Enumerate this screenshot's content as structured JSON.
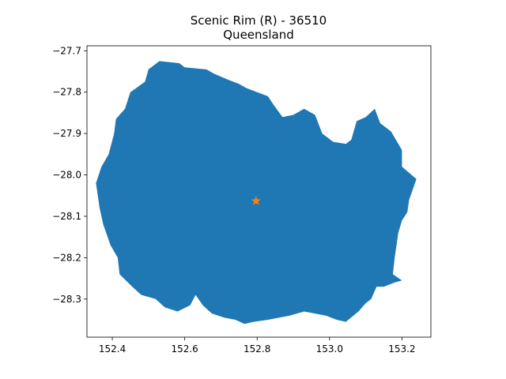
{
  "title": "Scenic Rim (R) - 36510",
  "subtitle": "Queensland",
  "map": {
    "region_color": "#1f77b4",
    "marker_color": "#ff7f0e",
    "marker": "star",
    "centroid": {
      "lon": 152.797,
      "lat": -28.063
    },
    "xlim": [
      152.33,
      153.28
    ],
    "ylim": [
      -28.392,
      -27.688
    ],
    "xticks": [
      {
        "value": 152.4,
        "label": "152.4"
      },
      {
        "value": 152.6,
        "label": "152.6"
      },
      {
        "value": 152.8,
        "label": "152.8"
      },
      {
        "value": 153.0,
        "label": "153.0"
      },
      {
        "value": 153.2,
        "label": "153.2"
      }
    ],
    "yticks": [
      {
        "value": -27.7,
        "label": "−27.7"
      },
      {
        "value": -27.8,
        "label": "−27.8"
      },
      {
        "value": -27.9,
        "label": "−27.9"
      },
      {
        "value": -28.0,
        "label": "−28.0"
      },
      {
        "value": -28.1,
        "label": "−28.1"
      },
      {
        "value": -28.2,
        "label": "−28.2"
      },
      {
        "value": -28.3,
        "label": "−28.3"
      }
    ],
    "boundary": [
      [
        152.53,
        -27.725
      ],
      [
        152.585,
        -27.73
      ],
      [
        152.6,
        -27.74
      ],
      [
        152.66,
        -27.745
      ],
      [
        152.68,
        -27.755
      ],
      [
        152.72,
        -27.77
      ],
      [
        152.75,
        -27.78
      ],
      [
        152.77,
        -27.79
      ],
      [
        152.8,
        -27.8
      ],
      [
        152.83,
        -27.81
      ],
      [
        152.845,
        -27.83
      ],
      [
        152.87,
        -27.86
      ],
      [
        152.9,
        -27.855
      ],
      [
        152.93,
        -27.84
      ],
      [
        152.96,
        -27.855
      ],
      [
        152.98,
        -27.9
      ],
      [
        153.01,
        -27.92
      ],
      [
        153.045,
        -27.925
      ],
      [
        153.06,
        -27.915
      ],
      [
        153.075,
        -27.87
      ],
      [
        153.1,
        -27.86
      ],
      [
        153.125,
        -27.84
      ],
      [
        153.14,
        -27.875
      ],
      [
        153.17,
        -27.895
      ],
      [
        153.2,
        -27.94
      ],
      [
        153.2,
        -27.98
      ],
      [
        153.24,
        -28.01
      ],
      [
        153.22,
        -28.06
      ],
      [
        153.215,
        -28.09
      ],
      [
        153.2,
        -28.11
      ],
      [
        153.19,
        -28.14
      ],
      [
        153.18,
        -28.2
      ],
      [
        153.175,
        -28.24
      ],
      [
        153.2,
        -28.255
      ],
      [
        153.18,
        -28.26
      ],
      [
        153.15,
        -28.27
      ],
      [
        153.13,
        -28.27
      ],
      [
        153.115,
        -28.3
      ],
      [
        153.1,
        -28.31
      ],
      [
        153.08,
        -28.33
      ],
      [
        153.045,
        -28.355
      ],
      [
        153.02,
        -28.35
      ],
      [
        152.99,
        -28.34
      ],
      [
        152.96,
        -28.335
      ],
      [
        152.93,
        -28.33
      ],
      [
        152.89,
        -28.34
      ],
      [
        152.86,
        -28.345
      ],
      [
        152.83,
        -28.35
      ],
      [
        152.79,
        -28.355
      ],
      [
        152.765,
        -28.36
      ],
      [
        152.74,
        -28.35
      ],
      [
        152.71,
        -28.345
      ],
      [
        152.675,
        -28.335
      ],
      [
        152.65,
        -28.315
      ],
      [
        152.63,
        -28.29
      ],
      [
        152.615,
        -28.315
      ],
      [
        152.58,
        -28.33
      ],
      [
        152.545,
        -28.32
      ],
      [
        152.52,
        -28.3
      ],
      [
        152.48,
        -28.29
      ],
      [
        152.455,
        -28.27
      ],
      [
        152.42,
        -28.24
      ],
      [
        152.415,
        -28.2
      ],
      [
        152.395,
        -28.17
      ],
      [
        152.375,
        -28.12
      ],
      [
        152.365,
        -28.08
      ],
      [
        152.355,
        -28.02
      ],
      [
        152.37,
        -27.98
      ],
      [
        152.39,
        -27.95
      ],
      [
        152.405,
        -27.9
      ],
      [
        152.41,
        -27.865
      ],
      [
        152.435,
        -27.84
      ],
      [
        152.45,
        -27.8
      ],
      [
        152.49,
        -27.775
      ],
      [
        152.5,
        -27.745
      ]
    ]
  }
}
